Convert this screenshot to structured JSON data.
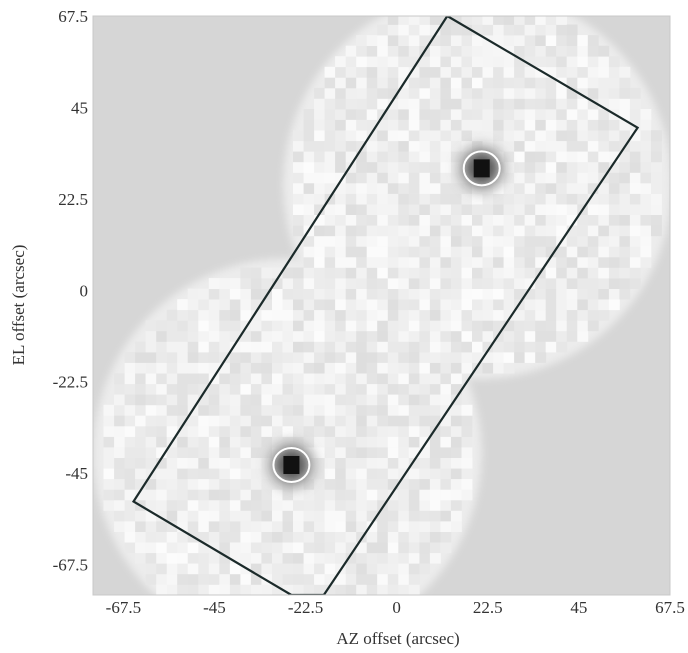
{
  "chart_data": {
    "type": "heatmap",
    "title": "",
    "xlabel": "AZ offset (arcsec)",
    "ylabel": "EL offset (arcsec)",
    "xlim": [
      -75,
      67.5
    ],
    "ylim": [
      -75,
      67.5
    ],
    "xticks": [
      -67.5,
      -45,
      -22.5,
      0,
      22.5,
      45,
      67.5
    ],
    "yticks": [
      67.5,
      45,
      22.5,
      0,
      -22.5,
      -45,
      -67.5
    ],
    "xtick_labels": [
      "-67.5",
      "-45",
      "-22.5",
      "0",
      "22.5",
      "45",
      "67.5"
    ],
    "ytick_labels": [
      "67.5",
      "45",
      "22.5",
      "0",
      "-22.5",
      "-45",
      "-67.5"
    ],
    "grid": false,
    "colormap": "grayscale (white = low, black = high)",
    "background_color": "#d6d6d6",
    "sources": [
      {
        "az": 21,
        "el": 30,
        "marker": "white ellipse"
      },
      {
        "az": -26,
        "el": -43,
        "marker": "white ellipse"
      }
    ],
    "field_polygon": [
      [
        12.5,
        67.5
      ],
      [
        59.5,
        40
      ],
      [
        -18,
        -75
      ],
      [
        -26,
        -75
      ],
      [
        -65,
        -52
      ]
    ],
    "coverage_regions": [
      {
        "center_az": 20,
        "center_el": 26,
        "radius": 48
      },
      {
        "center_az": -27,
        "center_el": -40,
        "radius": 48
      }
    ]
  }
}
